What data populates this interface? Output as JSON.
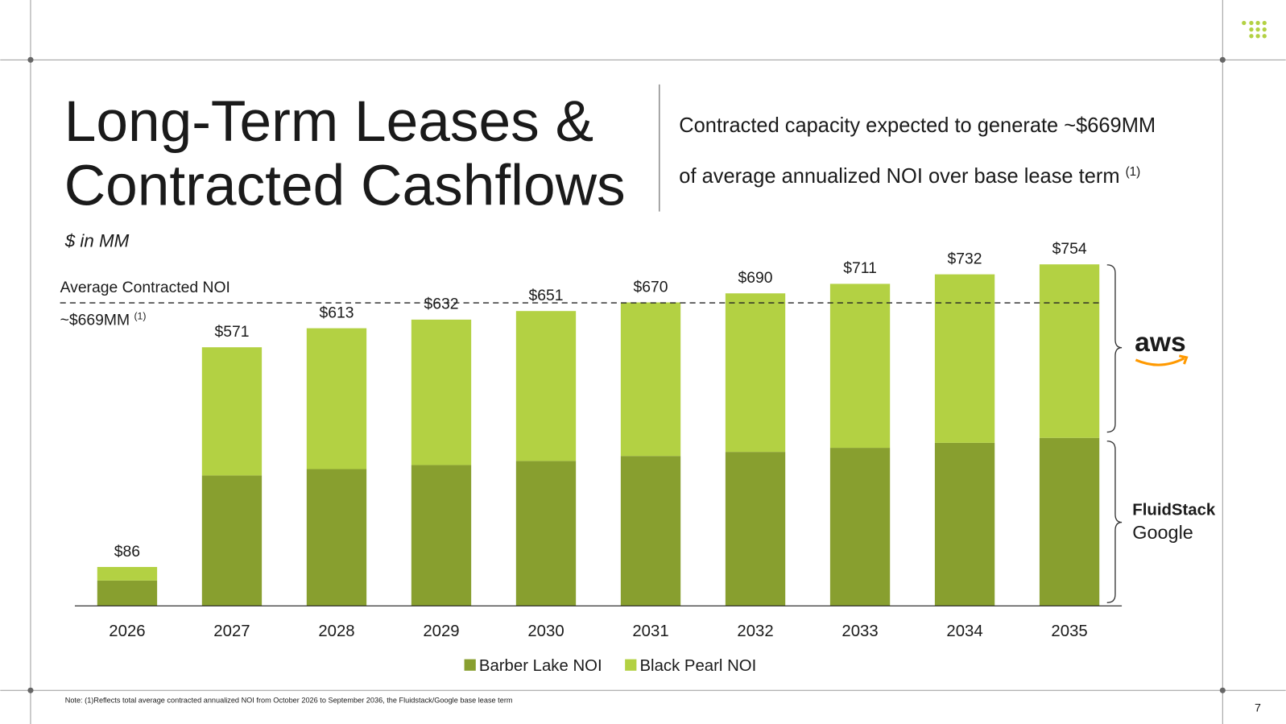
{
  "title": [
    "Long-Term Leases &",
    "Contracted Cashflows"
  ],
  "subtitle": [
    "Contracted capacity expected to generate ~$669MM",
    "of average annualized NOI over base lease term"
  ],
  "subtitle_note": "(1)",
  "units": "$ in MM",
  "footnote": "Note: (1)Reflects total average contracted annualized NOI from October 2026 to September 2036, the Fluidstack/Google base lease term",
  "page_number": "7",
  "tenants": {
    "upper": "aws",
    "lower": [
      "FluidStack",
      "Google"
    ]
  },
  "chart_data": {
    "type": "stacked_bar",
    "categories": [
      "2026",
      "2027",
      "2028",
      "2029",
      "2030",
      "2031",
      "2032",
      "2033",
      "2034",
      "2035"
    ],
    "series": [
      {
        "name": "Barber Lake NOI",
        "color": "#889f2f",
        "values": [
          56,
          288,
          302,
          311,
          320,
          331,
          340,
          349,
          360,
          371
        ]
      },
      {
        "name": "Black Pearl NOI",
        "color": "#b3d143",
        "values": [
          30,
          283,
          311,
          321,
          331,
          339,
          350,
          362,
          372,
          383
        ]
      }
    ],
    "totals": [
      86,
      571,
      613,
      632,
      651,
      670,
      690,
      711,
      732,
      754
    ],
    "total_labels": [
      "$86",
      "$571",
      "$613",
      "$632",
      "$651",
      "$670",
      "$690",
      "$711",
      "$732",
      "$754"
    ],
    "ylim": [
      0,
      800
    ],
    "average": {
      "label": "Average Contracted NOI",
      "value": 669,
      "value_label": "~$669MM",
      "note": "(1)"
    },
    "legend": "bottom"
  }
}
